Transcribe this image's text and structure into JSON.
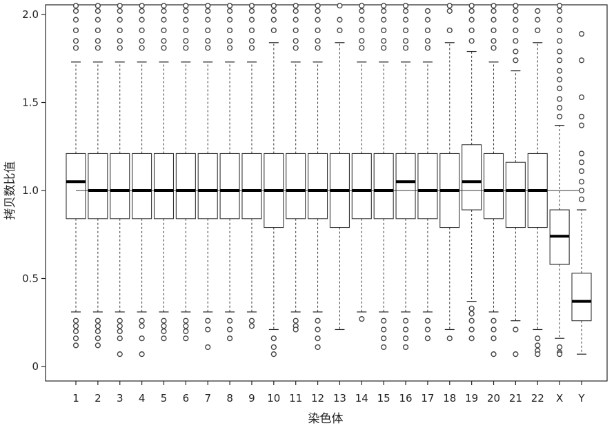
{
  "chart_data": {
    "type": "boxplot",
    "title": "",
    "xlabel": "染色体",
    "ylabel": "拷贝数比值",
    "ylim": [
      0,
      2.02
    ],
    "yticks": [
      0,
      0.5,
      1.0,
      1.5,
      2.0
    ],
    "ytick_labels": [
      "0",
      "0.5",
      "1.0",
      "1.5",
      "2.0"
    ],
    "reference_line": 1.0,
    "grid": false,
    "categories": [
      "1",
      "2",
      "3",
      "4",
      "5",
      "6",
      "7",
      "8",
      "9",
      "10",
      "11",
      "12",
      "13",
      "14",
      "15",
      "16",
      "17",
      "18",
      "19",
      "20",
      "21",
      "22",
      "X",
      "Y"
    ],
    "boxes": [
      {
        "q1": 0.84,
        "median": 1.05,
        "q3": 1.21,
        "whisker_low": 0.31,
        "whisker_high": 1.73,
        "outliers_low": [
          0.26,
          0.23,
          0.2,
          0.16,
          0.12
        ],
        "outliers_high": [
          1.81,
          1.85,
          1.91,
          1.97,
          2.02,
          2.05
        ]
      },
      {
        "q1": 0.84,
        "median": 1.0,
        "q3": 1.21,
        "whisker_low": 0.31,
        "whisker_high": 1.73,
        "outliers_low": [
          0.26,
          0.23,
          0.2,
          0.16,
          0.12
        ],
        "outliers_high": [
          1.81,
          1.85,
          1.91,
          1.97,
          2.02,
          2.05
        ]
      },
      {
        "q1": 0.84,
        "median": 1.0,
        "q3": 1.21,
        "whisker_low": 0.31,
        "whisker_high": 1.73,
        "outliers_low": [
          0.26,
          0.23,
          0.2,
          0.16,
          0.07
        ],
        "outliers_high": [
          1.81,
          1.85,
          1.91,
          1.97,
          2.02,
          2.05
        ]
      },
      {
        "q1": 0.84,
        "median": 1.0,
        "q3": 1.21,
        "whisker_low": 0.31,
        "whisker_high": 1.73,
        "outliers_low": [
          0.26,
          0.23,
          0.16,
          0.07
        ],
        "outliers_high": [
          1.81,
          1.85,
          1.91,
          1.97,
          2.02,
          2.05
        ]
      },
      {
        "q1": 0.84,
        "median": 1.0,
        "q3": 1.21,
        "whisker_low": 0.31,
        "whisker_high": 1.73,
        "outliers_low": [
          0.26,
          0.23,
          0.2,
          0.16
        ],
        "outliers_high": [
          1.81,
          1.85,
          1.91,
          1.97,
          2.02,
          2.05
        ]
      },
      {
        "q1": 0.84,
        "median": 1.0,
        "q3": 1.21,
        "whisker_low": 0.31,
        "whisker_high": 1.73,
        "outliers_low": [
          0.26,
          0.23,
          0.2,
          0.16
        ],
        "outliers_high": [
          1.81,
          1.85,
          1.91,
          1.97,
          2.02,
          2.05
        ]
      },
      {
        "q1": 0.84,
        "median": 1.0,
        "q3": 1.21,
        "whisker_low": 0.31,
        "whisker_high": 1.73,
        "outliers_low": [
          0.26,
          0.21,
          0.11
        ],
        "outliers_high": [
          1.81,
          1.85,
          1.91,
          1.97,
          2.02,
          2.05
        ]
      },
      {
        "q1": 0.84,
        "median": 1.0,
        "q3": 1.21,
        "whisker_low": 0.31,
        "whisker_high": 1.73,
        "outliers_low": [
          0.26,
          0.21,
          0.16
        ],
        "outliers_high": [
          1.81,
          1.85,
          1.91,
          1.97,
          2.02,
          2.05
        ]
      },
      {
        "q1": 0.84,
        "median": 1.0,
        "q3": 1.21,
        "whisker_low": 0.31,
        "whisker_high": 1.73,
        "outliers_low": [
          0.26,
          0.23
        ],
        "outliers_high": [
          1.81,
          1.85,
          1.91,
          1.97,
          2.02,
          2.05
        ]
      },
      {
        "q1": 0.79,
        "median": 1.0,
        "q3": 1.21,
        "whisker_low": 0.21,
        "whisker_high": 1.84,
        "outliers_low": [
          0.16,
          0.11,
          0.07
        ],
        "outliers_high": [
          1.91,
          1.97,
          2.02,
          2.05
        ]
      },
      {
        "q1": 0.84,
        "median": 1.0,
        "q3": 1.21,
        "whisker_low": 0.31,
        "whisker_high": 1.73,
        "outliers_low": [
          0.26,
          0.23,
          0.21
        ],
        "outliers_high": [
          1.81,
          1.85,
          1.91,
          1.97,
          2.02,
          2.05
        ]
      },
      {
        "q1": 0.84,
        "median": 1.0,
        "q3": 1.21,
        "whisker_low": 0.31,
        "whisker_high": 1.73,
        "outliers_low": [
          0.26,
          0.21,
          0.16,
          0.11
        ],
        "outliers_high": [
          1.81,
          1.85,
          1.91,
          1.97,
          2.02,
          2.05
        ]
      },
      {
        "q1": 0.79,
        "median": 1.0,
        "q3": 1.21,
        "whisker_low": 0.21,
        "whisker_high": 1.84,
        "outliers_low": [],
        "outliers_high": [
          1.91,
          1.97,
          2.05
        ]
      },
      {
        "q1": 0.84,
        "median": 1.0,
        "q3": 1.21,
        "whisker_low": 0.31,
        "whisker_high": 1.73,
        "outliers_low": [
          0.27
        ],
        "outliers_high": [
          1.81,
          1.85,
          1.91,
          1.97,
          2.02,
          2.05
        ]
      },
      {
        "q1": 0.84,
        "median": 1.0,
        "q3": 1.21,
        "whisker_low": 0.31,
        "whisker_high": 1.73,
        "outliers_low": [
          0.26,
          0.21,
          0.16,
          0.11
        ],
        "outliers_high": [
          1.81,
          1.85,
          1.91,
          1.97,
          2.02,
          2.05
        ]
      },
      {
        "q1": 0.84,
        "median": 1.05,
        "q3": 1.21,
        "whisker_low": 0.31,
        "whisker_high": 1.73,
        "outliers_low": [
          0.26,
          0.21,
          0.16,
          0.11
        ],
        "outliers_high": [
          1.81,
          1.85,
          1.91,
          1.97,
          2.02,
          2.05
        ]
      },
      {
        "q1": 0.84,
        "median": 1.0,
        "q3": 1.21,
        "whisker_low": 0.31,
        "whisker_high": 1.73,
        "outliers_low": [
          0.26,
          0.21,
          0.16
        ],
        "outliers_high": [
          1.81,
          1.85,
          1.91,
          1.97,
          2.02
        ]
      },
      {
        "q1": 0.79,
        "median": 1.0,
        "q3": 1.21,
        "whisker_low": 0.21,
        "whisker_high": 1.84,
        "outliers_low": [
          0.16
        ],
        "outliers_high": [
          1.91,
          2.02,
          2.05
        ]
      },
      {
        "q1": 0.89,
        "median": 1.05,
        "q3": 1.26,
        "whisker_low": 0.37,
        "whisker_high": 1.79,
        "outliers_low": [
          0.33,
          0.3,
          0.26,
          0.21,
          0.16
        ],
        "outliers_high": [
          1.85,
          1.91,
          1.97,
          2.02,
          2.05
        ]
      },
      {
        "q1": 0.84,
        "median": 1.0,
        "q3": 1.21,
        "whisker_low": 0.31,
        "whisker_high": 1.73,
        "outliers_low": [
          0.26,
          0.21,
          0.16,
          0.07
        ],
        "outliers_high": [
          1.81,
          1.85,
          1.91,
          1.97,
          2.02,
          2.05
        ]
      },
      {
        "q1": 0.79,
        "median": 1.0,
        "q3": 1.16,
        "whisker_low": 0.26,
        "whisker_high": 1.68,
        "outliers_low": [
          0.21,
          0.07
        ],
        "outliers_high": [
          1.74,
          1.79,
          1.85,
          1.91,
          1.97,
          2.02,
          2.05
        ]
      },
      {
        "q1": 0.79,
        "median": 1.0,
        "q3": 1.21,
        "whisker_low": 0.21,
        "whisker_high": 1.84,
        "outliers_low": [
          0.16,
          0.12,
          0.09,
          0.07
        ],
        "outliers_high": [
          1.91,
          1.97,
          2.02
        ]
      },
      {
        "q1": 0.58,
        "median": 0.74,
        "q3": 0.89,
        "whisker_low": 0.16,
        "whisker_high": 1.37,
        "outliers_low": [
          0.11,
          0.08,
          0.07
        ],
        "outliers_high": [
          1.42,
          1.47,
          1.52,
          1.58,
          1.63,
          1.68,
          1.74,
          1.79,
          1.85,
          1.91,
          1.97,
          2.02,
          2.05
        ]
      },
      {
        "q1": 0.26,
        "median": 0.37,
        "q3": 0.53,
        "whisker_low": 0.07,
        "whisker_high": 0.89,
        "outliers_low": [],
        "outliers_high": [
          0.95,
          1.0,
          1.05,
          1.11,
          1.16,
          1.21,
          1.37,
          1.42,
          1.53,
          1.74,
          1.89
        ]
      }
    ]
  }
}
